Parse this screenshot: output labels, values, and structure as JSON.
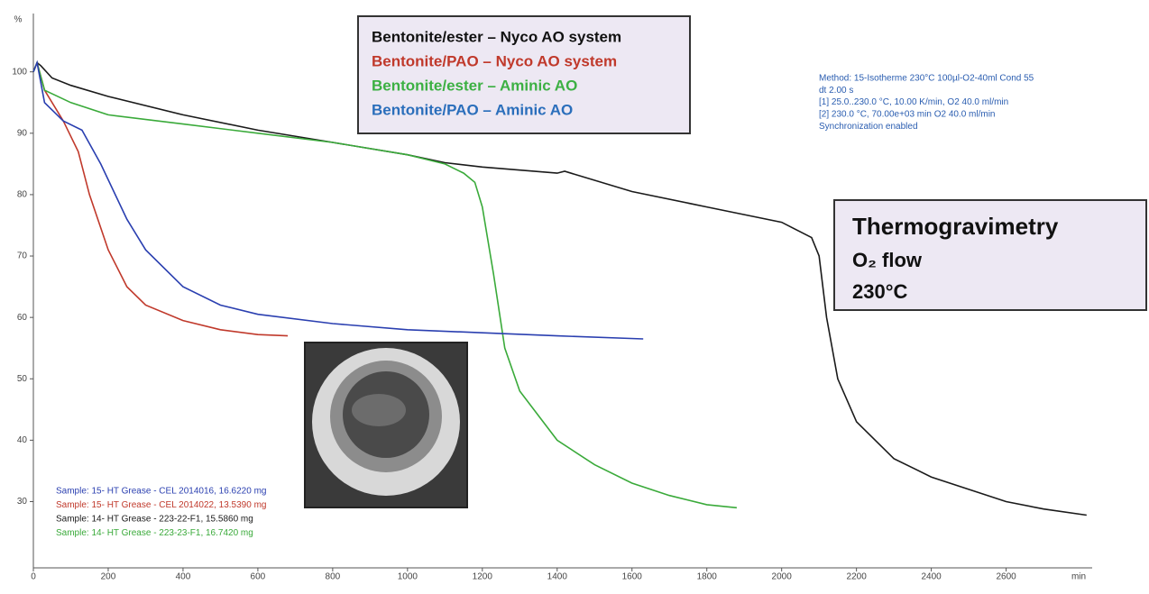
{
  "chart_data": {
    "type": "line",
    "y_axis_label": "%",
    "x_axis_label": "min",
    "xlim": [
      0,
      2830
    ],
    "ylim": [
      19.5,
      109.5
    ],
    "xticks": [
      0,
      200,
      400,
      600,
      800,
      1000,
      1200,
      1400,
      1600,
      1800,
      2000,
      2200,
      2400,
      2600
    ],
    "yticks": [
      30,
      40,
      50,
      60,
      70,
      80,
      90,
      100
    ],
    "grid": false,
    "series": [
      {
        "name": "Bentonite/ester – Nyco AO system",
        "color": "#1a1a1a",
        "x": [
          0,
          10,
          20,
          50,
          100,
          200,
          400,
          600,
          800,
          1000,
          1100,
          1200,
          1400,
          1420,
          1600,
          1800,
          2000,
          2080,
          2100,
          2120,
          2150,
          2200,
          2300,
          2400,
          2500,
          2600,
          2700,
          2815
        ],
        "values": [
          100,
          101.5,
          101,
          99,
          97.8,
          96,
          93,
          90.5,
          88.5,
          86.5,
          85.2,
          84.5,
          83.5,
          83.8,
          80.5,
          78,
          75.5,
          73,
          70,
          60,
          50,
          43,
          37,
          34,
          32,
          30,
          28.8,
          27.8
        ]
      },
      {
        "name": "Bentonite/PAO – Nyco AO system",
        "color": "#c0392b",
        "x": [
          0,
          10,
          30,
          80,
          120,
          150,
          200,
          250,
          300,
          400,
          500,
          600,
          680
        ],
        "values": [
          100,
          101.5,
          97,
          92,
          87,
          80,
          71,
          65,
          62,
          59.5,
          58,
          57.2,
          57
        ]
      },
      {
        "name": "Bentonite/ester – Aminic AO",
        "color": "#3aaa3a",
        "x": [
          0,
          10,
          30,
          100,
          200,
          400,
          600,
          800,
          1000,
          1100,
          1150,
          1180,
          1200,
          1230,
          1260,
          1300,
          1400,
          1500,
          1600,
          1700,
          1800,
          1880
        ],
        "values": [
          100,
          101.5,
          97,
          95,
          93,
          91.5,
          90,
          88.5,
          86.5,
          85,
          83.5,
          82,
          78,
          67,
          55,
          48,
          40,
          36,
          33,
          31,
          29.5,
          29
        ]
      },
      {
        "name": "Bentonite/PAO – Aminic AO",
        "color": "#2a3fb0",
        "x": [
          0,
          10,
          30,
          80,
          130,
          180,
          250,
          300,
          400,
          500,
          600,
          800,
          1000,
          1200,
          1400,
          1630
        ],
        "values": [
          100,
          101.5,
          95,
          92,
          90.5,
          85,
          76,
          71,
          65,
          62,
          60.5,
          59,
          58,
          57.5,
          57,
          56.5
        ]
      }
    ],
    "legend_colors": [
      "#111111",
      "#c0392b",
      "#3cb043",
      "#2a6ebb"
    ],
    "method_color": "#2a5db0",
    "method": [
      "Method: 15-Isotherme 230°C 100µl-O2-40ml Cond 55",
      "dt 2.00 s",
      "[1] 25.0..230.0 °C, 10.00 K/min, O2 40.0 ml/min",
      "[2] 230.0 °C, 70.00e+03 min      O2 40.0 ml/min",
      "Synchronization enabled"
    ],
    "info_box": [
      "Thermogravimetry",
      "O₂ flow",
      "230°C"
    ],
    "samples": [
      {
        "text": "Sample: 15- HT Grease - CEL 2014016, 16.6220 mg",
        "color": "#2a3fb0"
      },
      {
        "text": "Sample: 15- HT Grease - CEL 2014022, 13.5390 mg",
        "color": "#c0392b"
      },
      {
        "text": "Sample: 14- HT Grease - 223-22-F1, 15.5860 mg",
        "color": "#1a1a1a"
      },
      {
        "text": "Sample: 14- HT Grease - 223-23-F1, 16.7420 mg",
        "color": "#3aaa3a"
      }
    ]
  }
}
